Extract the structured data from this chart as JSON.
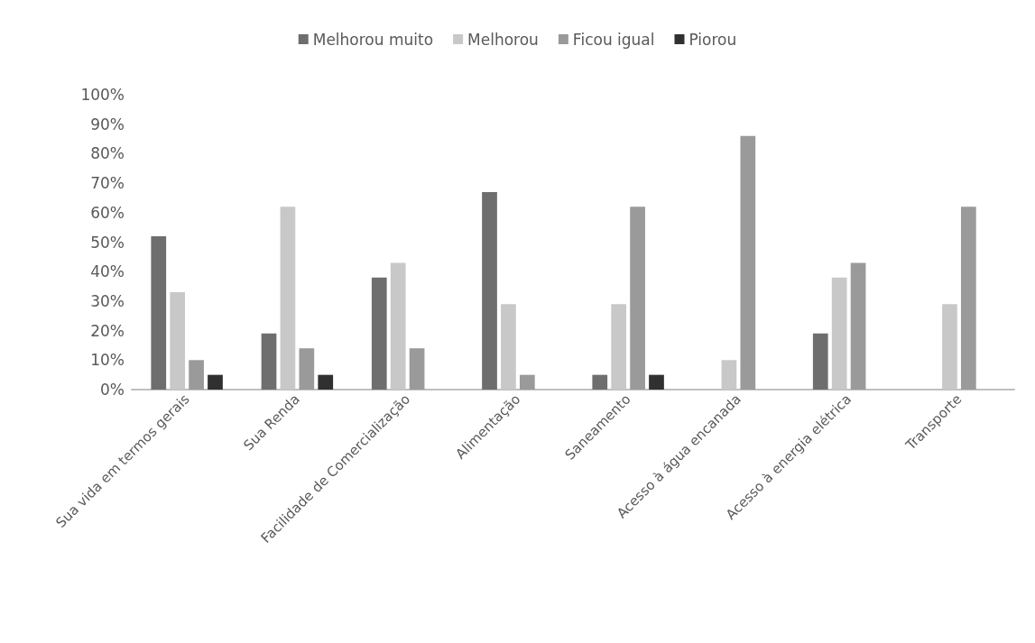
{
  "chart_data": {
    "type": "bar",
    "categories": [
      "Sua vida em termos gerais",
      "Sua Renda",
      "Facilidade de Comercialização",
      "Alimentação",
      "Saneamento",
      "Acesso à água encanada",
      "Acesso à energia elétrica",
      "Transporte"
    ],
    "series": [
      {
        "name": "Melhorou muito",
        "color": "#6e6e6e",
        "values": [
          52,
          19,
          38,
          67,
          5,
          0,
          19,
          0
        ]
      },
      {
        "name": "Melhorou",
        "color": "#c8c8c8",
        "values": [
          33,
          62,
          43,
          29,
          29,
          10,
          38,
          29
        ]
      },
      {
        "name": "Ficou igual",
        "color": "#9a9a9a",
        "values": [
          10,
          14,
          14,
          5,
          62,
          86,
          43,
          62
        ]
      },
      {
        "name": "Piorou",
        "color": "#303030",
        "values": [
          5,
          5,
          0,
          0,
          5,
          0,
          0,
          0
        ]
      }
    ],
    "ylim": [
      0,
      100
    ],
    "yticks": [
      {
        "value": 0,
        "label": "0%"
      },
      {
        "value": 10,
        "label": "10%"
      },
      {
        "value": 20,
        "label": "20%"
      },
      {
        "value": 30,
        "label": "30%"
      },
      {
        "value": 40,
        "label": "40%"
      },
      {
        "value": 50,
        "label": "50%"
      },
      {
        "value": 60,
        "label": "60%"
      },
      {
        "value": 70,
        "label": "70%"
      },
      {
        "value": 80,
        "label": "80%"
      },
      {
        "value": 90,
        "label": "90%"
      },
      {
        "value": 100,
        "label": "100%"
      }
    ],
    "grid": false,
    "legend": "top"
  }
}
